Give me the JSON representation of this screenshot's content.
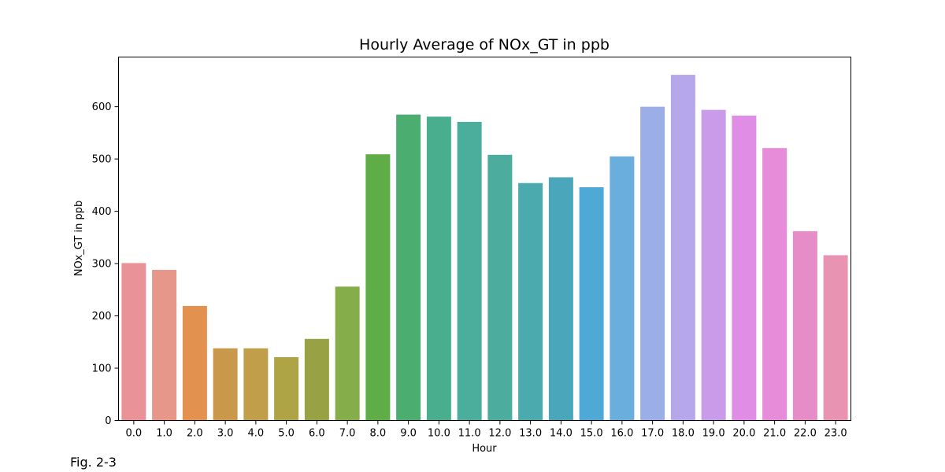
{
  "figure": {
    "caption": "Fig. 2-3"
  },
  "chart_data": {
    "type": "bar",
    "title": "Hourly Average of NOx_GT in ppb",
    "xlabel": "Hour",
    "ylabel": "NOx_GT in ppb",
    "ylim": [
      0,
      695
    ],
    "yticks": [
      0,
      100,
      200,
      300,
      400,
      500,
      600
    ],
    "grid": false,
    "categories": [
      "0.0",
      "1.0",
      "2.0",
      "3.0",
      "4.0",
      "5.0",
      "6.0",
      "7.0",
      "8.0",
      "9.0",
      "10.0",
      "11.0",
      "12.0",
      "13.0",
      "14.0",
      "15.0",
      "16.0",
      "17.0",
      "18.0",
      "19.0",
      "20.0",
      "21.0",
      "22.0",
      "23.0"
    ],
    "values": [
      301,
      288,
      219,
      138,
      138,
      121,
      156,
      256,
      509,
      585,
      581,
      571,
      508,
      454,
      465,
      446,
      505,
      600,
      661,
      594,
      583,
      521,
      362,
      316
    ],
    "colors": [
      "#e99398",
      "#e6978a",
      "#e2914f",
      "#c9984a",
      "#c19e49",
      "#aea345",
      "#98a244",
      "#85ad4a",
      "#5ead47",
      "#4bae70",
      "#49ae8e",
      "#4bae9c",
      "#4cad9f",
      "#4aaaad",
      "#4aa6bb",
      "#4fa9d6",
      "#6aaede",
      "#9caee8",
      "#b6a7ea",
      "#c89ce8",
      "#e08de6",
      "#e68cd9",
      "#e68cc6",
      "#e793b1"
    ]
  }
}
